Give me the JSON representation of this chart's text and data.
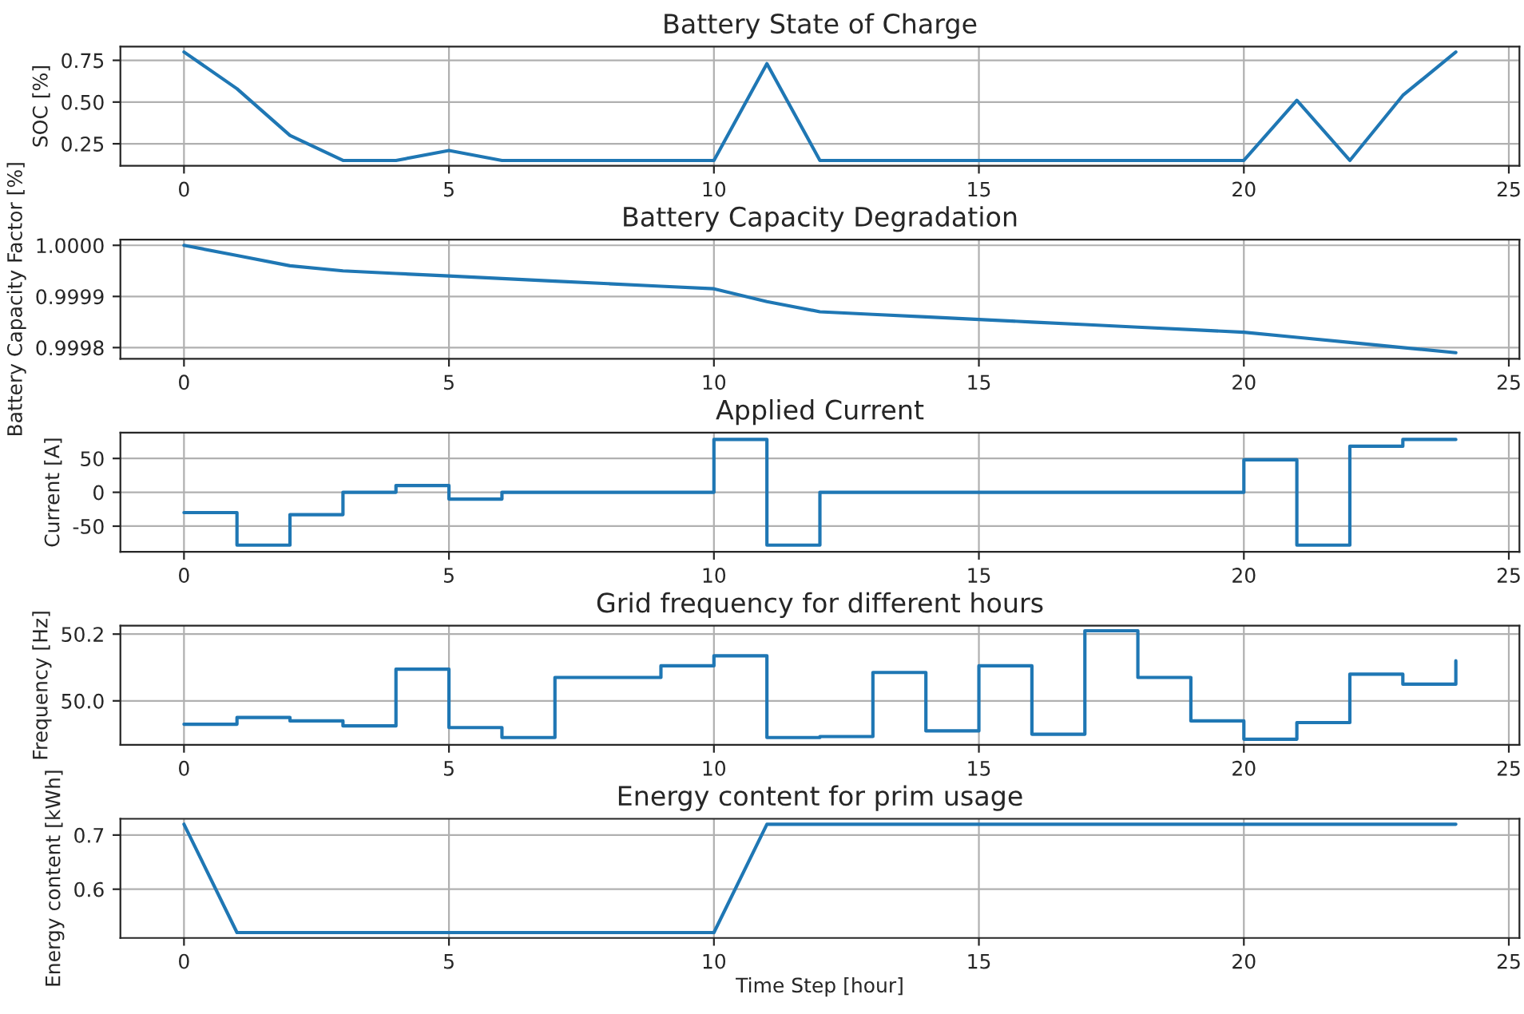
{
  "chart_data": [
    {
      "type": "line",
      "title": "Battery State of Charge",
      "ylabel": "SOC [%]",
      "x": [
        0,
        1,
        2,
        3,
        4,
        5,
        6,
        7,
        8,
        9,
        10,
        11,
        12,
        13,
        14,
        15,
        16,
        17,
        18,
        19,
        20,
        21,
        22,
        23,
        24
      ],
      "series": [
        {
          "color": "#1f77b4",
          "values": [
            0.8,
            0.58,
            0.3,
            0.15,
            0.15,
            0.21,
            0.15,
            0.15,
            0.15,
            0.15,
            0.15,
            0.73,
            0.15,
            0.15,
            0.15,
            0.15,
            0.15,
            0.15,
            0.15,
            0.15,
            0.15,
            0.51,
            0.15,
            0.54,
            0.8
          ]
        }
      ],
      "xlim": [
        -1.2,
        25.2
      ],
      "ylim": [
        0.118,
        0.832
      ],
      "xticks": [
        0,
        5,
        10,
        15,
        20,
        25
      ],
      "yticks": [
        0.25,
        {
          "value": 0.5,
          "label": "0.50"
        },
        0.75
      ],
      "grid": true
    },
    {
      "type": "line",
      "title": "Battery Capacity Degradation",
      "ylabel": "Battery Capacity Factor [%]",
      "x": [
        0,
        1,
        2,
        3,
        4,
        5,
        6,
        7,
        8,
        9,
        10,
        11,
        12,
        13,
        14,
        15,
        16,
        17,
        18,
        19,
        20,
        21,
        22,
        23,
        24
      ],
      "series": [
        {
          "color": "#1f77b4",
          "values": [
            1.0,
            0.99998,
            0.99996,
            0.99995,
            0.999945,
            0.99994,
            0.999935,
            0.99993,
            0.999925,
            0.99992,
            0.999915,
            0.99989,
            0.99987,
            0.999865,
            0.99986,
            0.999855,
            0.99985,
            0.999845,
            0.99984,
            0.999835,
            0.99983,
            0.99982,
            0.99981,
            0.9998,
            0.99979
          ]
        }
      ],
      "xlim": [
        -1.2,
        25.2
      ],
      "ylim": [
        0.999778,
        1.000011
      ],
      "xticks": [
        0,
        5,
        10,
        15,
        20,
        25
      ],
      "yticks": [
        {
          "value": 0.9998,
          "label": "0.9998"
        },
        {
          "value": 0.9999,
          "label": "0.9999"
        },
        {
          "value": 1.0,
          "label": "1.0000"
        }
      ],
      "grid": true
    },
    {
      "type": "step",
      "title": "Applied Current",
      "ylabel": "Current [A]",
      "x": [
        0,
        1,
        2,
        3,
        4,
        5,
        6,
        7,
        8,
        9,
        10,
        11,
        12,
        13,
        14,
        15,
        16,
        17,
        18,
        19,
        20,
        21,
        22,
        23,
        24
      ],
      "series": [
        {
          "color": "#1f77b4",
          "values": [
            -30,
            -78,
            -33,
            0,
            10,
            -10,
            0,
            0,
            0,
            0,
            78,
            -78,
            0,
            0,
            0,
            0,
            0,
            0,
            0,
            0,
            48,
            -78,
            68,
            78,
            78
          ]
        }
      ],
      "xlim": [
        -1.2,
        25.2
      ],
      "ylim": [
        -88,
        88
      ],
      "xticks": [
        0,
        5,
        10,
        15,
        20,
        25
      ],
      "yticks": [
        -50,
        0,
        50
      ],
      "grid": true
    },
    {
      "type": "step",
      "title": "Grid frequency for different hours",
      "ylabel": "Frequency [Hz]",
      "x": [
        0,
        1,
        2,
        3,
        4,
        5,
        6,
        7,
        8,
        9,
        10,
        11,
        12,
        13,
        14,
        15,
        16,
        17,
        18,
        19,
        20,
        21,
        22,
        23,
        24
      ],
      "series": [
        {
          "color": "#1f77b4",
          "values": [
            49.93,
            49.95,
            49.94,
            49.925,
            50.095,
            49.92,
            49.89,
            50.07,
            50.07,
            50.105,
            50.135,
            49.89,
            49.893,
            50.085,
            49.91,
            50.105,
            49.9,
            50.21,
            50.07,
            49.94,
            49.885,
            49.935,
            50.08,
            50.05,
            50.12
          ]
        }
      ],
      "xlim": [
        -1.2,
        25.2
      ],
      "ylim": [
        49.868,
        50.225
      ],
      "xticks": [
        0,
        5,
        10,
        15,
        20,
        25
      ],
      "yticks": [
        {
          "value": 50.0,
          "label": "50.0"
        },
        {
          "value": 50.2,
          "label": "50.2"
        }
      ],
      "grid": true
    },
    {
      "type": "line",
      "title": "Energy content for prim usage",
      "ylabel": "Energy content [kWh]",
      "xlabel": "Time Step [hour]",
      "x": [
        0,
        1,
        2,
        3,
        4,
        5,
        6,
        7,
        8,
        9,
        10,
        11,
        12,
        13,
        14,
        15,
        16,
        17,
        18,
        19,
        20,
        21,
        22,
        23,
        24
      ],
      "series": [
        {
          "color": "#1f77b4",
          "values": [
            0.72,
            0.52,
            0.52,
            0.52,
            0.52,
            0.52,
            0.52,
            0.52,
            0.52,
            0.52,
            0.52,
            0.72,
            0.72,
            0.72,
            0.72,
            0.72,
            0.72,
            0.72,
            0.72,
            0.72,
            0.72,
            0.72,
            0.72,
            0.72,
            0.72
          ]
        }
      ],
      "xlim": [
        -1.2,
        25.2
      ],
      "ylim": [
        0.51,
        0.73
      ],
      "xticks": [
        0,
        5,
        10,
        15,
        20,
        25
      ],
      "yticks": [
        0.6,
        0.7
      ],
      "grid": true
    }
  ]
}
